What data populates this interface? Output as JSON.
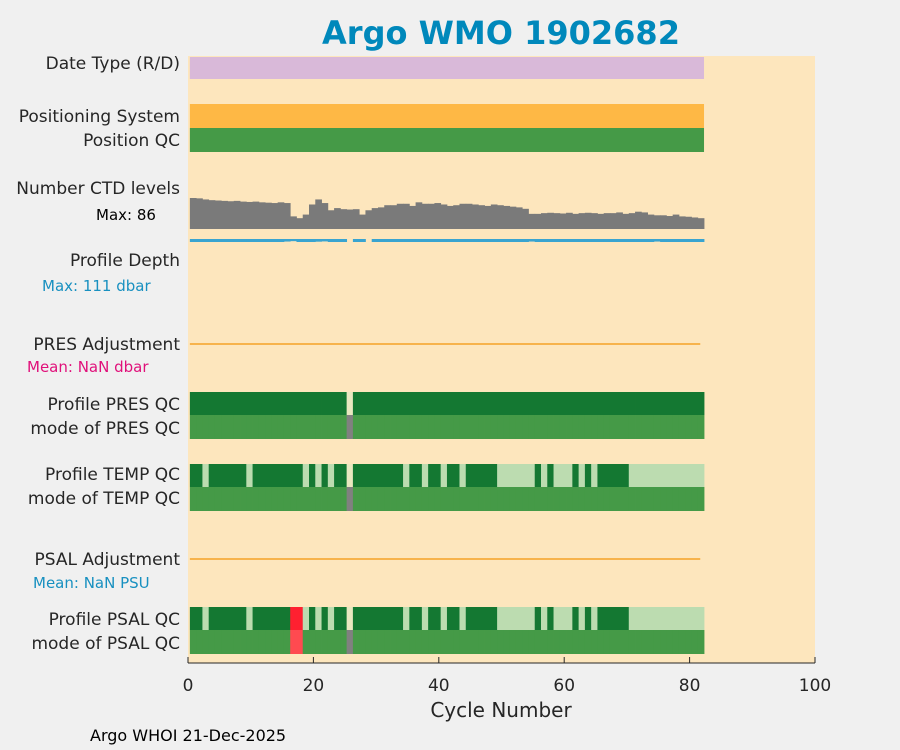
{
  "chart_data": {
    "type": "bar",
    "title": "Argo WMO 1902682",
    "xlabel": "Cycle Number",
    "xlim": [
      0,
      100
    ],
    "xticks": [
      0,
      20,
      40,
      60,
      80,
      100
    ],
    "xtick_labels": [
      "0",
      "20",
      "40",
      "60",
      "80",
      "100"
    ],
    "footer": "Argo WHOI 21-Dec-2025",
    "n_cycles": 82,
    "colors": {
      "background": "#fde6bd",
      "figure": "#f0f0f0",
      "title": "#0088bb",
      "date_type": "#d9b9d9",
      "positioning": "#feb845",
      "qc_dark": "#147832",
      "qc_medium": "#459a47",
      "qc_light": "#bcdcb0",
      "qc_gray": "#808080",
      "qc_red": "#ff2030",
      "qc_red_light": "#ff4a50",
      "qc_cream": "#e8e8c0",
      "ctd_bars": "#7a7a7a",
      "depth_line": "#39a4d0",
      "adjust_line": "#f7b34c",
      "pink_text": "#e0107a",
      "blue_text": "#1890c0"
    },
    "rows": {
      "date_type": {
        "label": "Date Type (R/D)"
      },
      "positioning": {
        "label": "Positioning System"
      },
      "position_qc": {
        "label": "Position QC"
      },
      "ctd_levels": {
        "label": "Number CTD levels",
        "max_label": "Max: 86",
        "max": 86,
        "values": [
          86,
          85,
          82,
          80,
          79,
          78,
          77,
          78,
          76,
          75,
          76,
          74,
          73,
          72,
          74,
          72,
          35,
          30,
          40,
          68,
          82,
          72,
          52,
          58,
          55,
          54,
          55,
          40,
          52,
          58,
          60,
          66,
          66,
          70,
          70,
          64,
          74,
          70,
          70,
          72,
          68,
          64,
          66,
          70,
          70,
          68,
          66,
          64,
          68,
          66,
          64,
          62,
          60,
          56,
          42,
          42,
          44,
          45,
          44,
          43,
          45,
          42,
          44,
          45,
          44,
          42,
          44,
          44,
          46,
          42,
          44,
          48,
          46,
          40,
          38,
          38,
          36,
          40,
          35,
          34,
          32,
          30
        ]
      },
      "profile_depth": {
        "label": "Profile Depth",
        "max_label": "Max:  111 dbar",
        "max": 111,
        "values": [
          111,
          111,
          111,
          111,
          111,
          111,
          111,
          111,
          111,
          111,
          111,
          111,
          111,
          111,
          111,
          95,
          80,
          111,
          111,
          111,
          100,
          90,
          111,
          111,
          111,
          0,
          111,
          111,
          0,
          111,
          111,
          111,
          111,
          111,
          111,
          111,
          111,
          111,
          111,
          111,
          111,
          111,
          111,
          111,
          111,
          111,
          111,
          111,
          111,
          111,
          111,
          111,
          111,
          111,
          95,
          111,
          111,
          111,
          111,
          111,
          111,
          111,
          111,
          111,
          111,
          111,
          111,
          111,
          111,
          111,
          111,
          111,
          111,
          111,
          95,
          111,
          111,
          111,
          111,
          111,
          111,
          111
        ]
      },
      "pres_adjustment": {
        "label": "PRES Adjustment",
        "mean_label": "Mean:  NaN dbar"
      },
      "profile_pres_qc": {
        "label": "Profile PRES QC",
        "values": [
          "D",
          "D",
          "D",
          "D",
          "D",
          "D",
          "D",
          "D",
          "D",
          "D",
          "D",
          "D",
          "D",
          "D",
          "D",
          "D",
          "D",
          "D",
          "D",
          "D",
          "D",
          "D",
          "D",
          "D",
          "D",
          "C",
          "D",
          "D",
          "D",
          "D",
          "D",
          "D",
          "D",
          "D",
          "D",
          "D",
          "D",
          "D",
          "D",
          "D",
          "D",
          "D",
          "D",
          "D",
          "D",
          "D",
          "D",
          "D",
          "D",
          "D",
          "D",
          "D",
          "D",
          "D",
          "D",
          "D",
          "D",
          "D",
          "D",
          "D",
          "D",
          "D",
          "D",
          "D",
          "D",
          "D",
          "D",
          "D",
          "D",
          "D",
          "D",
          "D",
          "D",
          "D",
          "D",
          "D",
          "D",
          "D",
          "D",
          "D",
          "D",
          "D"
        ]
      },
      "mode_pres_qc": {
        "label": "mode of PRES QC",
        "values": [
          "M",
          "M",
          "M",
          "M",
          "M",
          "M",
          "M",
          "M",
          "M",
          "M",
          "M",
          "M",
          "M",
          "M",
          "M",
          "M",
          "M",
          "M",
          "M",
          "M",
          "M",
          "M",
          "M",
          "M",
          "M",
          "G",
          "M",
          "M",
          "M",
          "M",
          "M",
          "M",
          "M",
          "M",
          "M",
          "M",
          "M",
          "M",
          "M",
          "M",
          "M",
          "M",
          "M",
          "M",
          "M",
          "M",
          "M",
          "M",
          "M",
          "M",
          "M",
          "M",
          "M",
          "M",
          "M",
          "M",
          "M",
          "M",
          "M",
          "M",
          "M",
          "M",
          "M",
          "M",
          "M",
          "M",
          "M",
          "M",
          "M",
          "M",
          "M",
          "M",
          "M",
          "M",
          "M",
          "M",
          "M",
          "M",
          "M",
          "M",
          "M",
          "M"
        ]
      },
      "profile_temp_qc": {
        "label": "Profile TEMP QC",
        "values": [
          "D",
          "D",
          "L",
          "D",
          "D",
          "D",
          "D",
          "D",
          "D",
          "L",
          "D",
          "D",
          "D",
          "D",
          "D",
          "D",
          "D",
          "D",
          "L",
          "D",
          "L",
          "D",
          "L",
          "D",
          "D",
          "C",
          "D",
          "D",
          "D",
          "D",
          "D",
          "D",
          "D",
          "D",
          "L",
          "D",
          "D",
          "L",
          "D",
          "D",
          "L",
          "D",
          "D",
          "L",
          "D",
          "D",
          "D",
          "D",
          "D",
          "L",
          "L",
          "L",
          "L",
          "L",
          "L",
          "D",
          "L",
          "D",
          "L",
          "L",
          "L",
          "D",
          "L",
          "D",
          "L",
          "D",
          "D",
          "D",
          "D",
          "D",
          "L",
          "L",
          "L",
          "L",
          "L",
          "L",
          "L",
          "L",
          "L",
          "L",
          "L",
          "L"
        ]
      },
      "mode_temp_qc": {
        "label": "mode of TEMP QC",
        "values": [
          "M",
          "M",
          "M",
          "M",
          "M",
          "M",
          "M",
          "M",
          "M",
          "M",
          "M",
          "M",
          "M",
          "M",
          "M",
          "M",
          "M",
          "M",
          "M",
          "M",
          "M",
          "M",
          "M",
          "M",
          "M",
          "G",
          "M",
          "M",
          "M",
          "M",
          "M",
          "M",
          "M",
          "M",
          "M",
          "M",
          "M",
          "M",
          "M",
          "M",
          "M",
          "M",
          "M",
          "M",
          "M",
          "M",
          "M",
          "M",
          "M",
          "M",
          "M",
          "M",
          "M",
          "M",
          "M",
          "M",
          "M",
          "M",
          "M",
          "M",
          "M",
          "M",
          "M",
          "M",
          "M",
          "M",
          "M",
          "M",
          "M",
          "M",
          "M",
          "M",
          "M",
          "M",
          "M",
          "M",
          "M",
          "M",
          "M",
          "M",
          "M",
          "M"
        ]
      },
      "psal_adjustment": {
        "label": "PSAL Adjustment",
        "mean_label": "Mean:  NaN PSU"
      },
      "profile_psal_qc": {
        "label": "Profile PSAL QC",
        "values": [
          "D",
          "D",
          "L",
          "D",
          "D",
          "D",
          "D",
          "D",
          "D",
          "L",
          "D",
          "D",
          "D",
          "D",
          "D",
          "D",
          "R",
          "R",
          "L",
          "D",
          "L",
          "D",
          "L",
          "D",
          "D",
          "C",
          "D",
          "D",
          "D",
          "D",
          "D",
          "D",
          "D",
          "D",
          "L",
          "D",
          "D",
          "L",
          "D",
          "D",
          "L",
          "D",
          "D",
          "L",
          "D",
          "D",
          "D",
          "D",
          "D",
          "L",
          "L",
          "L",
          "L",
          "L",
          "L",
          "D",
          "L",
          "D",
          "L",
          "L",
          "L",
          "D",
          "L",
          "D",
          "L",
          "D",
          "D",
          "D",
          "D",
          "D",
          "L",
          "L",
          "L",
          "L",
          "L",
          "L",
          "L",
          "L",
          "L",
          "L",
          "L",
          "L"
        ]
      },
      "mode_psal_qc": {
        "label": "mode of PSAL QC",
        "values": [
          "M",
          "M",
          "M",
          "M",
          "M",
          "M",
          "M",
          "M",
          "M",
          "M",
          "M",
          "M",
          "M",
          "M",
          "M",
          "M",
          "P",
          "P",
          "M",
          "M",
          "M",
          "M",
          "M",
          "M",
          "M",
          "G",
          "M",
          "M",
          "M",
          "M",
          "M",
          "M",
          "M",
          "M",
          "M",
          "M",
          "M",
          "M",
          "M",
          "M",
          "M",
          "M",
          "M",
          "M",
          "M",
          "M",
          "M",
          "M",
          "M",
          "M",
          "M",
          "M",
          "M",
          "M",
          "M",
          "M",
          "M",
          "M",
          "M",
          "M",
          "M",
          "M",
          "M",
          "M",
          "M",
          "M",
          "M",
          "M",
          "M",
          "M",
          "M",
          "M",
          "M",
          "M",
          "M",
          "M",
          "M",
          "M",
          "M",
          "M",
          "M",
          "M"
        ]
      }
    }
  }
}
